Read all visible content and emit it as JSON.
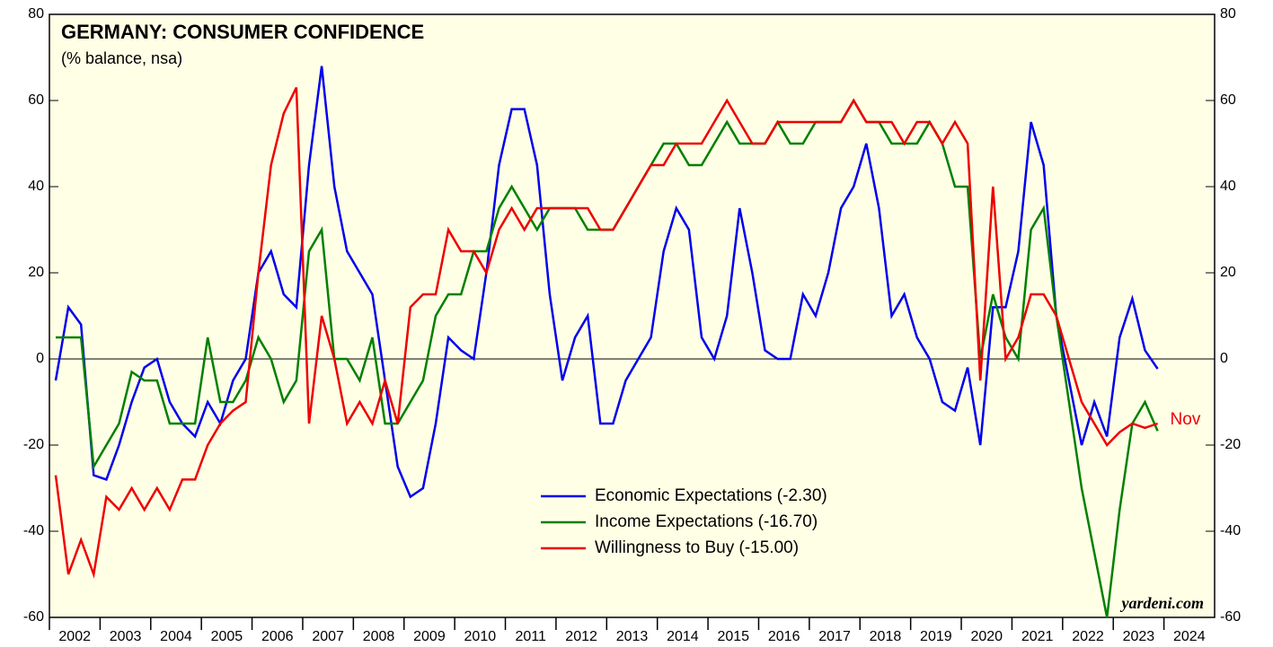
{
  "chart_data": {
    "type": "line",
    "title": "GERMANY: CONSUMER CONFIDENCE",
    "subtitle": "(% balance, nsa)",
    "annotation": "Nov",
    "source": "yardeni.com",
    "categories": [
      "2002",
      null,
      null,
      null,
      "2003",
      null,
      null,
      null,
      "2004",
      null,
      null,
      null,
      "2005",
      null,
      null,
      null,
      "2006",
      null,
      null,
      null,
      "2007",
      null,
      null,
      null,
      "2008",
      null,
      null,
      null,
      "2009",
      null,
      null,
      null,
      "2010",
      null,
      null,
      null,
      "2011",
      null,
      null,
      null,
      "2012",
      null,
      null,
      null,
      "2013",
      null,
      null,
      null,
      "2014",
      null,
      null,
      null,
      "2015",
      null,
      null,
      null,
      "2016",
      null,
      null,
      null,
      "2017",
      null,
      null,
      null,
      "2018",
      null,
      null,
      null,
      "2019",
      null,
      null,
      null,
      "2020",
      null,
      null,
      null,
      "2021",
      null,
      null,
      null,
      "2022",
      null,
      null,
      null,
      "2023",
      null,
      null,
      null,
      "2024",
      null,
      null,
      null
    ],
    "series": [
      {
        "name": "Economic Expectations (-2.30)",
        "color": "#0000ee",
        "values": [
          -5,
          12,
          8,
          -27,
          -28,
          -20,
          -10,
          -2,
          0,
          -10,
          -15,
          -18,
          -10,
          -15,
          -5,
          0,
          20,
          25,
          15,
          12,
          45,
          68,
          40,
          25,
          20,
          15,
          -5,
          -25,
          -32,
          -30,
          -15,
          5,
          2,
          0,
          20,
          45,
          58,
          58,
          45,
          15,
          -5,
          5,
          10,
          -15,
          -15,
          -5,
          0,
          5,
          25,
          35,
          30,
          5,
          0,
          10,
          35,
          20,
          2,
          0,
          0,
          15,
          10,
          20,
          35,
          40,
          50,
          35,
          10,
          15,
          5,
          0,
          -10,
          -12,
          -2,
          -20,
          12,
          12,
          25,
          55,
          45,
          10,
          -5,
          -20,
          -10,
          -18,
          5,
          14,
          2,
          -2.3,
          null,
          null,
          null,
          null
        ]
      },
      {
        "name": "Income Expectations (-16.70)",
        "color": "#008000",
        "values": [
          5,
          5,
          5,
          -25,
          -20,
          -15,
          -3,
          -5,
          -5,
          -15,
          -15,
          -15,
          5,
          -10,
          -10,
          -5,
          5,
          0,
          -10,
          -5,
          25,
          30,
          0,
          0,
          -5,
          5,
          -15,
          -15,
          -10,
          -5,
          10,
          15,
          15,
          25,
          25,
          35,
          40,
          35,
          30,
          35,
          35,
          35,
          30,
          30,
          30,
          35,
          40,
          45,
          50,
          50,
          45,
          45,
          50,
          55,
          50,
          50,
          50,
          55,
          50,
          50,
          55,
          55,
          55,
          60,
          55,
          55,
          50,
          50,
          50,
          55,
          50,
          40,
          40,
          0,
          15,
          5,
          0,
          30,
          35,
          10,
          -10,
          -30,
          -45,
          -60,
          -35,
          -15,
          -10,
          -16.7,
          null,
          null,
          null,
          null
        ]
      },
      {
        "name": "Willingness to Buy (-15.00)",
        "color": "#ee0000",
        "values": [
          -27,
          -50,
          -42,
          -50,
          -32,
          -35,
          -30,
          -35,
          -30,
          -35,
          -28,
          -28,
          -20,
          -15,
          -12,
          -10,
          20,
          45,
          57,
          63,
          -15,
          10,
          0,
          -15,
          -10,
          -15,
          -5,
          -15,
          12,
          15,
          15,
          30,
          25,
          25,
          20,
          30,
          35,
          30,
          35,
          35,
          35,
          35,
          35,
          30,
          30,
          35,
          40,
          45,
          45,
          50,
          50,
          50,
          55,
          60,
          55,
          50,
          50,
          55,
          55,
          55,
          55,
          55,
          55,
          60,
          55,
          55,
          55,
          50,
          55,
          55,
          50,
          55,
          50,
          -5,
          40,
          0,
          5,
          15,
          15,
          10,
          0,
          -10,
          -15,
          -20,
          -17,
          -15,
          -16,
          -15,
          null,
          null,
          null,
          null
        ]
      }
    ],
    "ylim": [
      -60,
      80
    ],
    "yticks": [
      -60,
      -40,
      -20,
      0,
      20,
      40,
      60,
      80
    ]
  }
}
